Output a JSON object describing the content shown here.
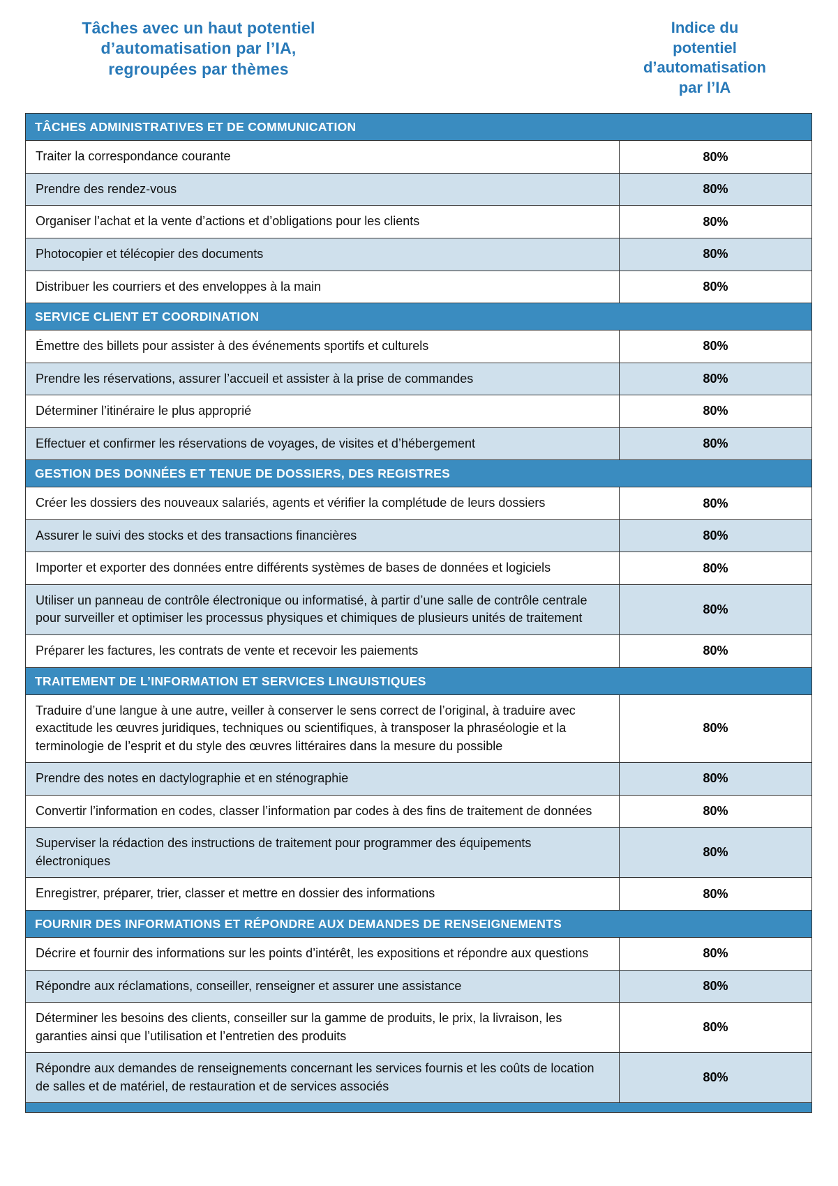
{
  "header": {
    "left_title": "Tâches avec un haut potentiel\nd’automatisation par l’IA,\nregroupées par thèmes",
    "right_title": "Indice du\npotentiel\nd’automatisation\npar l’IA"
  },
  "colors": {
    "title_blue": "#2879b8",
    "section_bar_blue": "#3a8cc0",
    "alt_row_blue": "#cfe0ec",
    "border": "#333333"
  },
  "sections": [
    {
      "title": "TÂCHES ADMINISTRATIVES ET DE COMMUNICATION",
      "rows": [
        {
          "task": "Traiter la correspondance courante",
          "value": "80%"
        },
        {
          "task": "Prendre des rendez-vous",
          "value": "80%"
        },
        {
          "task": "Organiser l’achat et la vente d’actions et d’obligations pour les clients",
          "value": "80%"
        },
        {
          "task": "Photocopier et télécopier des documents",
          "value": "80%"
        },
        {
          "task": "Distribuer les courriers et des enveloppes à la main",
          "value": "80%"
        }
      ]
    },
    {
      "title": "SERVICE CLIENT ET COORDINATION",
      "rows": [
        {
          "task": "Émettre des billets pour assister à des événements sportifs et culturels",
          "value": "80%"
        },
        {
          "task": "Prendre les réservations, assurer l’accueil et assister à la prise de commandes",
          "value": "80%"
        },
        {
          "task": "Déterminer l’itinéraire le plus approprié",
          "value": "80%"
        },
        {
          "task": "Effectuer et confirmer les réservations de voyages, de visites et d’hébergement",
          "value": "80%"
        }
      ]
    },
    {
      "title": "GESTION DES DONNÉES ET TENUE DE DOSSIERS, DES REGISTRES",
      "rows": [
        {
          "task": "Créer les dossiers des nouveaux salariés, agents et vérifier la complétude de leurs dossiers",
          "value": "80%"
        },
        {
          "task": "Assurer le suivi des stocks et des transactions financières",
          "value": "80%"
        },
        {
          "task": "Importer et exporter des données entre différents systèmes de bases de données et logiciels",
          "value": "80%"
        },
        {
          "task": "Utiliser un panneau de contrôle électronique ou informatisé, à partir d’une salle de contrôle centrale pour surveiller et optimiser les processus physiques et chimiques de plusieurs unités de traitement",
          "value": "80%"
        },
        {
          "task": "Préparer les factures, les contrats de vente et recevoir les paiements",
          "value": "80%"
        }
      ]
    },
    {
      "title": "TRAITEMENT DE L’INFORMATION ET SERVICES LINGUISTIQUES",
      "rows": [
        {
          "task": "Traduire d’une langue à une autre, veiller à conserver le sens correct de l’original, à traduire avec exactitude les œuvres juridiques, techniques ou scientifiques, à transposer la phraséologie et la terminologie de l’esprit et du style des œuvres littéraires dans la mesure du possible",
          "value": "80%"
        },
        {
          "task": "Prendre des notes en dactylographie et en sténographie",
          "value": "80%"
        },
        {
          "task": "Convertir l’information en codes, classer l’information par codes à des fins de traitement de données",
          "value": "80%"
        },
        {
          "task": "Superviser la rédaction des instructions de traitement pour programmer des équipements électroniques",
          "value": "80%"
        },
        {
          "task": "Enregistrer, préparer, trier, classer et mettre en dossier des informations",
          "value": "80%"
        }
      ]
    },
    {
      "title": "FOURNIR DES INFORMATIONS ET RÉPONDRE AUX DEMANDES DE RENSEIGNEMENTS",
      "rows": [
        {
          "task": "Décrire et fournir des informations sur les points d’intérêt, les expositions et répondre aux questions",
          "value": "80%"
        },
        {
          "task": "Répondre aux réclamations, conseiller, renseigner et assurer une assistance",
          "value": "80%"
        },
        {
          "task": "Déterminer les besoins des clients, conseiller sur la gamme de produits, le prix, la livraison, les garanties ainsi que l’utilisation et l’entretien des produits",
          "value": "80%"
        },
        {
          "task": "Répondre aux demandes de renseignements concernant les services fournis et les coûts de location de salles et de matériel, de restauration et de services associés",
          "value": "80%"
        }
      ]
    }
  ]
}
